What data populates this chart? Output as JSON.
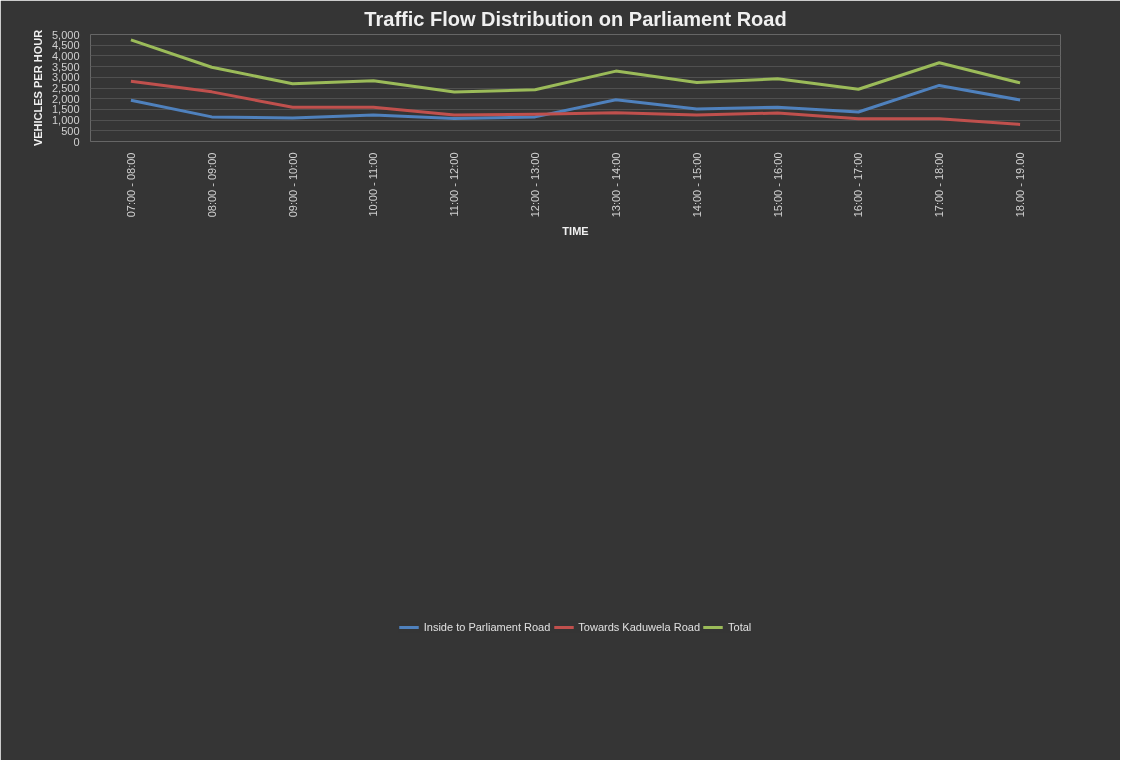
{
  "chart_data": {
    "type": "line",
    "title": "Traffic Flow Distribution on Parliament Road",
    "xlabel": "TIME",
    "ylabel": "VEHICLES PER HOUR",
    "categories": [
      "07:00 - 08:00",
      "08:00 - 09:00",
      "09:00 - 10:00",
      "10:00 - 11:00",
      "11:00 - 12:00",
      "12:00 - 13:00",
      "13:00 - 14:00",
      "14:00 - 15:00",
      "15:00 - 16:00",
      "16:00 - 17:00",
      "17:00 - 18:00",
      "18.00 - 19.00"
    ],
    "series": [
      {
        "name": "Inside to Parliament Road",
        "color": "#4f81bd",
        "values": [
          1930,
          1150,
          1100,
          1240,
          1070,
          1150,
          1950,
          1520,
          1600,
          1380,
          2620,
          1940
        ]
      },
      {
        "name": "Towards Kaduwela Road",
        "color": "#c0504d",
        "values": [
          2820,
          2320,
          1600,
          1600,
          1240,
          1270,
          1340,
          1240,
          1330,
          1060,
          1060,
          800
        ]
      },
      {
        "name": "Total",
        "color": "#9bbb59",
        "values": [
          4750,
          3470,
          2700,
          2840,
          2310,
          2420,
          3290,
          2760,
          2930,
          2440,
          3680,
          2740
        ]
      }
    ],
    "ylim": [
      0,
      5000
    ],
    "yticks": [
      0,
      500,
      {
        "value": 1000,
        "label": "1,000"
      },
      {
        "value": 1500,
        "label": "1,500"
      },
      {
        "value": 2000,
        "label": "2,000"
      },
      {
        "value": 2500,
        "label": "2,500"
      },
      {
        "value": 3000,
        "label": "3,000"
      },
      {
        "value": 3500,
        "label": "3,500"
      },
      {
        "value": 4000,
        "label": "4,000"
      },
      {
        "value": 4500,
        "label": "4,500"
      },
      {
        "value": 5000,
        "label": "5,000"
      }
    ],
    "grid": "y",
    "legend": "bottom",
    "marker": "none",
    "line_style": "solid"
  }
}
